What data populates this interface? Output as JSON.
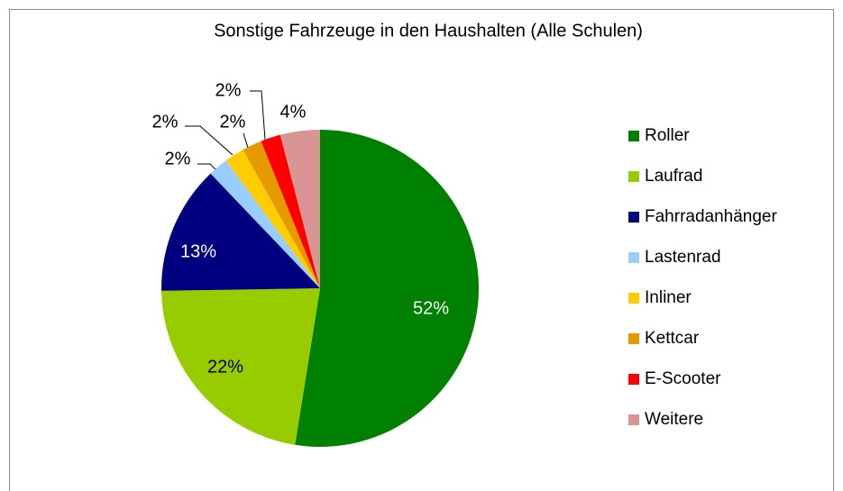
{
  "chart_data": {
    "type": "pie",
    "title": "Sonstige Fahrzeuge in den Haushalten (Alle Schulen)",
    "categories": [
      "Roller",
      "Laufrad",
      "Fahrradanhänger",
      "Lastenrad",
      "Inliner",
      "Kettcar",
      "E-Scooter",
      "Weitere"
    ],
    "values": [
      52,
      22,
      13,
      2,
      2,
      2,
      2,
      4
    ],
    "value_labels": [
      "52%",
      "22%",
      "13%",
      "2%",
      "2%",
      "2%",
      "2%",
      "4%"
    ],
    "colors": [
      "#008000",
      "#99cc00",
      "#000080",
      "#99ccff",
      "#ffcc00",
      "#e69a00",
      "#ff0000",
      "#d99594"
    ],
    "legend": "right"
  }
}
